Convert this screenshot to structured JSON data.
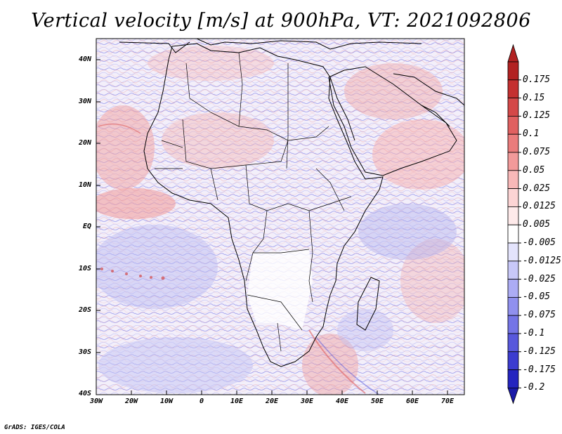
{
  "title": "Vertical velocity [m/s] at 900hPa, VT: 2021092806",
  "credit": "GrADS: IGES/COLA",
  "map": {
    "region": "Africa",
    "variable": "Vertical velocity",
    "units": "m/s",
    "level": "900hPa",
    "valid_time": "2021092806",
    "lat_labels": [
      "40N",
      "30N",
      "20N",
      "10N",
      "EQ",
      "10S",
      "20S",
      "30S",
      "40S"
    ],
    "lon_labels": [
      "30W",
      "20W",
      "10W",
      "0",
      "10E",
      "20E",
      "30E",
      "40E",
      "50E",
      "60E",
      "70E"
    ]
  },
  "colorbar": {
    "levels": [
      {
        "label": "0.175",
        "color": "#b22222"
      },
      {
        "label": "0.15",
        "color": "#c43030"
      },
      {
        "label": "0.125",
        "color": "#d44848"
      },
      {
        "label": "0.1",
        "color": "#e06060"
      },
      {
        "label": "0.075",
        "color": "#ea7c7c"
      },
      {
        "label": "0.05",
        "color": "#f29a9a"
      },
      {
        "label": "0.025",
        "color": "#f8b8b8"
      },
      {
        "label": "0.0125",
        "color": "#fcd4d4"
      },
      {
        "label": "0.005",
        "color": "#feeaea"
      },
      {
        "label": "-0.005",
        "color": "#ffffff"
      },
      {
        "label": "-0.0125",
        "color": "#e4e4fc"
      },
      {
        "label": "-0.025",
        "color": "#c8c8f8"
      },
      {
        "label": "-0.05",
        "color": "#acacf4"
      },
      {
        "label": "-0.075",
        "color": "#9090ee"
      },
      {
        "label": "-0.1",
        "color": "#7474e6"
      },
      {
        "label": "-0.125",
        "color": "#5858dc"
      },
      {
        "label": "-0.175",
        "color": "#3c3cd0"
      },
      {
        "label": "-0.2",
        "color": "#2424c0"
      }
    ],
    "top_arrow_color": "#b22222",
    "bottom_arrow_color": "#1a1aa8"
  },
  "colors": {
    "field_base": "#f6f2fb",
    "positive": "#e86a6a",
    "negative": "#7a7ae8",
    "coast": "#000000"
  }
}
